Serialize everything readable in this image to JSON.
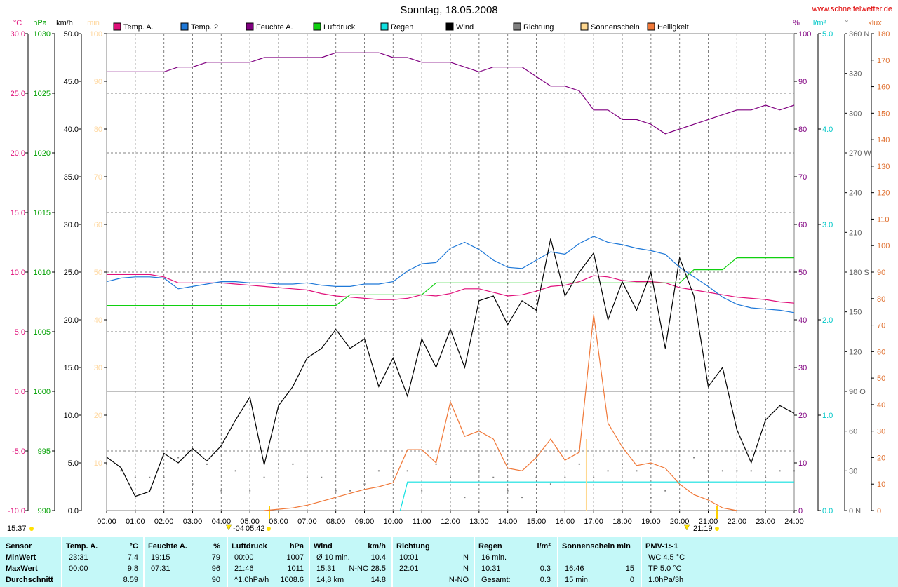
{
  "chart_data": {
    "type": "line",
    "title": "Sonntag, 18.05.2008",
    "source": "www.schneifelwetter.de",
    "xlim": [
      0,
      24
    ],
    "xticks": [
      {
        "value": 0,
        "label": "00:00"
      },
      {
        "value": 1,
        "label": "01:00"
      },
      {
        "value": 2,
        "label": "02:00"
      },
      {
        "value": 3,
        "label": "03:00"
      },
      {
        "value": 4,
        "label": "04:00"
      },
      {
        "value": 5,
        "label": "05:00"
      },
      {
        "value": 6,
        "label": "06:00"
      },
      {
        "value": 7,
        "label": "07:00"
      },
      {
        "value": 8,
        "label": "08:00"
      },
      {
        "value": 9,
        "label": "09:00"
      },
      {
        "value": 10,
        "label": "10:00"
      },
      {
        "value": 11,
        "label": "11:00"
      },
      {
        "value": 12,
        "label": "12:00"
      },
      {
        "value": 13,
        "label": "13:00"
      },
      {
        "value": 14,
        "label": "14:00"
      },
      {
        "value": 15,
        "label": "15:00"
      },
      {
        "value": 16,
        "label": "16:00"
      },
      {
        "value": 17,
        "label": "17:00"
      },
      {
        "value": 18,
        "label": "18:00"
      },
      {
        "value": 19,
        "label": "19:00"
      },
      {
        "value": 20,
        "label": "20:00"
      },
      {
        "value": 21,
        "label": "21:00"
      },
      {
        "value": 22,
        "label": "22:00"
      },
      {
        "value": 23,
        "label": "23:00"
      },
      {
        "value": 24,
        "label": "24:00"
      }
    ],
    "grid": true,
    "grid_axis": 0,
    "axes": [
      {
        "label": "°C",
        "color": "#e0107a",
        "lim": [
          -10,
          30
        ],
        "ticks": [
          {
            "value": -10,
            "label": "-10.0"
          },
          {
            "value": -5,
            "label": "-5.0"
          },
          {
            "value": 0,
            "label": "0.0"
          },
          {
            "value": 5,
            "label": "5.0"
          },
          {
            "value": 10,
            "label": "10.0"
          },
          {
            "value": 15,
            "label": "15.0"
          },
          {
            "value": 20,
            "label": "20.0"
          },
          {
            "value": 25,
            "label": "25.0"
          },
          {
            "value": 30,
            "label": "30.0"
          }
        ]
      },
      {
        "label": "hPa",
        "color": "#00a000",
        "lim": [
          990,
          1030
        ],
        "ticks": [
          990,
          995,
          1000,
          1005,
          1010,
          1015,
          1020,
          1025,
          1030
        ]
      },
      {
        "label": "km/h",
        "color": "#000000",
        "lim": [
          0,
          50
        ],
        "ticks": [
          {
            "value": 0,
            "label": "0.0"
          },
          {
            "value": 5,
            "label": "5.0"
          },
          {
            "value": 10,
            "label": "10.0"
          },
          {
            "value": 15,
            "label": "15.0"
          },
          {
            "value": 20,
            "label": "20.0"
          },
          {
            "value": 25,
            "label": "25.0"
          },
          {
            "value": 30,
            "label": "30.0"
          },
          {
            "value": 35,
            "label": "35.0"
          },
          {
            "value": 40,
            "label": "40.0"
          },
          {
            "value": 45,
            "label": "45.0"
          },
          {
            "value": 50,
            "label": "50.0"
          }
        ]
      },
      {
        "label": "min",
        "color": "#ffd8a0",
        "lim": [
          0,
          100
        ],
        "ticks": [
          10,
          20,
          30,
          40,
          50,
          60,
          70,
          80,
          90,
          100
        ]
      },
      {
        "label": "%",
        "color": "#800080",
        "lim": [
          0,
          100
        ],
        "ticks": [
          0,
          10,
          20,
          30,
          40,
          50,
          60,
          70,
          80,
          90,
          100
        ]
      },
      {
        "label": "l/m²",
        "color": "#00c8c8",
        "lim": [
          0,
          5
        ],
        "ticks": [
          {
            "value": 0,
            "label": "0.0"
          },
          {
            "value": 1,
            "label": "1.0"
          },
          {
            "value": 2,
            "label": "2.0"
          },
          {
            "value": 3,
            "label": "3.0"
          },
          {
            "value": 4,
            "label": "4.0"
          },
          {
            "value": 5,
            "label": "5.0"
          }
        ]
      },
      {
        "label": "°",
        "color": "#606060",
        "lim": [
          0,
          360
        ],
        "ticks": [
          {
            "value": 0,
            "label": "0 N"
          },
          30,
          60,
          {
            "value": 90,
            "label": "90 O"
          },
          120,
          150,
          {
            "value": 180,
            "label": "180 S"
          },
          210,
          240,
          {
            "value": 270,
            "label": "270 W"
          },
          300,
          330,
          {
            "value": 360,
            "label": "360 N"
          }
        ]
      },
      {
        "label": "klux",
        "color": "#e07030",
        "lim": [
          0,
          180
        ],
        "ticks": [
          0,
          10,
          20,
          30,
          40,
          50,
          60,
          70,
          80,
          90,
          100,
          110,
          120,
          130,
          140,
          150,
          160,
          170,
          180
        ]
      }
    ],
    "x": [
      0,
      0.5,
      1,
      1.5,
      2,
      2.5,
      3,
      3.5,
      4,
      4.5,
      5,
      5.5,
      6,
      6.5,
      7,
      7.5,
      8,
      8.5,
      9,
      9.5,
      10,
      10.5,
      11,
      11.5,
      12,
      12.5,
      13,
      13.5,
      14,
      14.5,
      15,
      15.5,
      16,
      16.5,
      17,
      17.5,
      18,
      18.5,
      19,
      19.5,
      20,
      20.5,
      21,
      21.5,
      22,
      22.5,
      23,
      23.5,
      24
    ],
    "series": [
      {
        "name": "Temp. A.",
        "color": "#e0107a",
        "axis": 0,
        "style": "line",
        "values": [
          9.8,
          9.8,
          9.8,
          9.8,
          9.6,
          9.1,
          9.1,
          9.1,
          9.1,
          9.0,
          8.9,
          8.8,
          8.7,
          8.6,
          8.5,
          8.2,
          8.0,
          7.9,
          7.8,
          7.7,
          7.7,
          7.8,
          8.1,
          8.0,
          8.2,
          8.6,
          8.6,
          8.3,
          8.0,
          8.1,
          8.4,
          8.8,
          8.9,
          9.2,
          9.7,
          9.6,
          9.3,
          9.2,
          9.2,
          9.1,
          8.7,
          8.5,
          8.3,
          8.1,
          7.9,
          7.8,
          7.7,
          7.5,
          7.4
        ]
      },
      {
        "name": "Temp. 2",
        "color": "#1e78d8",
        "axis": 0,
        "style": "line",
        "values": [
          9.2,
          9.5,
          9.6,
          9.6,
          9.5,
          8.6,
          8.8,
          9.0,
          9.2,
          9.2,
          9.1,
          9.1,
          9.0,
          9.0,
          9.1,
          8.9,
          8.8,
          8.8,
          9.0,
          9.0,
          9.2,
          10.1,
          10.7,
          10.8,
          12.0,
          12.5,
          11.9,
          11.0,
          10.4,
          10.3,
          11.0,
          11.7,
          11.5,
          12.4,
          13.0,
          12.5,
          12.3,
          12.0,
          11.8,
          11.5,
          10.4,
          9.6,
          8.8,
          7.9,
          7.3,
          7.0,
          6.9,
          6.8,
          6.6
        ]
      },
      {
        "name": "Feuchte A.",
        "color": "#800080",
        "axis": 4,
        "style": "line",
        "values": [
          92,
          92,
          92,
          92,
          92,
          93,
          93,
          94,
          94,
          94,
          94,
          95,
          95,
          95,
          95,
          95,
          96,
          96,
          96,
          96,
          95,
          95,
          94,
          94,
          94,
          93,
          92,
          93,
          93,
          93,
          91,
          89,
          89,
          88,
          84,
          84,
          82,
          82,
          81,
          79,
          80,
          81,
          82,
          83,
          84,
          84,
          85,
          84,
          85
        ]
      },
      {
        "name": "Luftdruck",
        "color": "#10d010",
        "axis": 1,
        "style": "line",
        "values": [
          1007.2,
          1007.2,
          1007.2,
          1007.2,
          1007.2,
          1007.2,
          1007.2,
          1007.2,
          1007.2,
          1007.2,
          1007.2,
          1007.2,
          1007.2,
          1007.2,
          1007.2,
          1007.2,
          1007.2,
          1008.1,
          1008.1,
          1008.1,
          1008.1,
          1008.1,
          1008.1,
          1009.1,
          1009.1,
          1009.1,
          1009.1,
          1009.1,
          1009.1,
          1009.1,
          1009.1,
          1009.1,
          1009.1,
          1009.1,
          1009.1,
          1009.1,
          1009.1,
          1009.1,
          1009.1,
          1009.1,
          1009.1,
          1010.2,
          1010.2,
          1010.2,
          1011.2,
          1011.2,
          1011.2,
          1011.2,
          1011.2
        ]
      },
      {
        "name": "Regen",
        "color": "#10e0e0",
        "axis": 5,
        "style": "line",
        "x": [
          10.25,
          10.5,
          24
        ],
        "values": [
          0,
          0.3,
          0.3
        ]
      },
      {
        "name": "Wind",
        "color": "#000000",
        "axis": 2,
        "style": "line",
        "values": [
          5.6,
          4.5,
          1.5,
          2.0,
          6.0,
          5.0,
          6.5,
          5.2,
          6.8,
          9.5,
          11.9,
          4.8,
          11.0,
          13.0,
          16.0,
          17.0,
          19.0,
          17.0,
          18.0,
          13.0,
          16.0,
          12.0,
          18.0,
          15.0,
          19.0,
          15.0,
          22.0,
          22.5,
          19.5,
          22.0,
          21.0,
          28.5,
          22.5,
          25.0,
          27.0,
          20.0,
          24.0,
          21.0,
          25.0,
          17.0,
          26.5,
          22.5,
          13.0,
          15.0,
          8.5,
          5.0,
          9.5,
          11.0,
          10.2
        ]
      },
      {
        "name": "Richtung",
        "color": "#808080",
        "axis": 6,
        "style": "dots",
        "values": [
          35,
          30,
          25,
          25,
          25,
          40,
          20,
          35,
          15,
          30,
          15,
          25,
          35,
          35,
          25,
          25,
          15,
          15,
          20,
          30,
          30,
          30,
          15,
          35,
          25,
          10,
          30,
          25,
          15,
          10,
          25,
          20,
          25,
          35,
          25,
          30,
          35,
          30,
          10,
          15,
          45,
          40,
          30,
          30,
          30,
          30,
          25,
          30,
          30
        ]
      },
      {
        "name": "Sonnenschein",
        "color": "#ffd890",
        "axis": 3,
        "style": "bar",
        "x": [
          16.75
        ],
        "values": [
          15
        ]
      },
      {
        "name": "Helligkeit",
        "color": "#f07838",
        "axis": 7,
        "style": "line",
        "values": [
          null,
          null,
          null,
          null,
          null,
          null,
          null,
          null,
          null,
          null,
          null,
          0,
          0.5,
          1,
          2,
          3.5,
          5,
          6.5,
          8,
          9,
          10.5,
          23,
          23,
          18,
          41,
          28,
          30,
          27,
          16,
          15,
          20,
          27,
          19,
          22,
          74,
          33,
          24,
          17,
          18,
          16,
          10,
          6,
          4,
          1,
          0,
          null,
          null,
          null,
          null
        ]
      }
    ],
    "annotations": [
      "15:37",
      "-04",
      "05:42",
      "21:19"
    ]
  },
  "summary": {
    "row_labels": [
      "Sensor",
      "MinWert",
      "MaxWert",
      "Durchschnitt"
    ],
    "columns": [
      {
        "title": "Temp. A.",
        "unit": "°C",
        "rows": [
          {
            "left": "23:31",
            "right": "7.4"
          },
          {
            "left": "00:00",
            "right": "9.8"
          },
          {
            "right": "8.59"
          }
        ]
      },
      {
        "title": "Feuchte A.",
        "unit": "%",
        "rows": [
          {
            "left": "19:15",
            "right": "79"
          },
          {
            "left": "07:31",
            "right": "96"
          },
          {
            "right": "90"
          }
        ]
      },
      {
        "title": "Luftdruck",
        "unit": "hPa",
        "rows": [
          {
            "left": "00:00",
            "right": "1007"
          },
          {
            "left": "21:46",
            "right": "1011"
          },
          {
            "left": "^1.0hPa/h",
            "right": "1008.6"
          }
        ]
      },
      {
        "title": "Wind",
        "unit": "km/h",
        "rows": [
          {
            "left": "Ø 10 min.",
            "right": "10.4"
          },
          {
            "left": "15:31",
            "right": "N-NO 28.5"
          },
          {
            "left": "14,8 km",
            "right": "14.8"
          }
        ]
      },
      {
        "title": "Richtung",
        "rows": [
          {
            "left": "10:01",
            "right": "N"
          },
          {
            "left": "22:01",
            "right": "N"
          },
          {
            "right": "N-NO"
          }
        ]
      },
      {
        "title": "Regen",
        "unit": "l/m²",
        "rows": [
          {
            "left": "16 min."
          },
          {
            "left": "10:31",
            "right": "0.3"
          },
          {
            "left": "Gesamt:",
            "right": "0.3"
          }
        ]
      },
      {
        "title": "Sonnenschein min",
        "rows": [
          {},
          {
            "left": "16:46",
            "right": "15"
          },
          {
            "left": "15 min.",
            "right": "0"
          }
        ]
      },
      {
        "title": "PMV-1:-1",
        "rows": [
          {
            "left": "WC 4.5 °C"
          },
          {
            "left": "TP 5.0 °C"
          },
          {
            "left": "1.0hPa/3h"
          }
        ]
      }
    ]
  }
}
